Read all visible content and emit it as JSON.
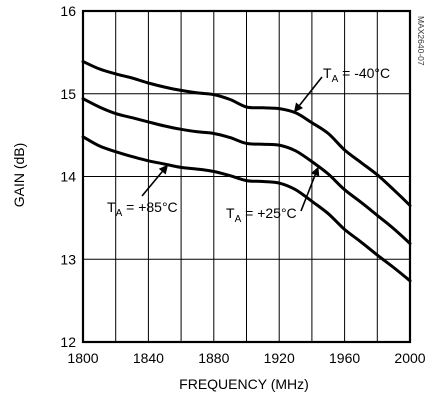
{
  "chart_data": {
    "type": "line",
    "title": "",
    "xlabel": "FREQUENCY (MHz)",
    "ylabel": "GAIN (dB)",
    "xlim": [
      1800,
      2000
    ],
    "ylim": [
      12,
      16
    ],
    "xticks": [
      1800,
      1840,
      1880,
      1920,
      1960,
      2000
    ],
    "yticks": [
      12,
      13,
      14,
      15,
      16
    ],
    "x_gridlines": [
      1800,
      1820,
      1840,
      1860,
      1880,
      1900,
      1920,
      1940,
      1960,
      1980,
      2000
    ],
    "y_gridlines": [
      12,
      13,
      14,
      15,
      16
    ],
    "grid": true,
    "watermark": "MAX2640-07",
    "series": [
      {
        "name": "TA = -40°C",
        "x": [
          1800,
          1810,
          1820,
          1830,
          1840,
          1850,
          1860,
          1870,
          1880,
          1890,
          1900,
          1910,
          1920,
          1930,
          1940,
          1950,
          1960,
          1970,
          1980,
          1990,
          2000
        ],
        "y": [
          15.39,
          15.3,
          15.24,
          15.19,
          15.13,
          15.08,
          15.04,
          15.01,
          14.99,
          14.93,
          14.84,
          14.83,
          14.82,
          14.77,
          14.65,
          14.52,
          14.32,
          14.17,
          14.02,
          13.84,
          13.65
        ]
      },
      {
        "name": "TA = +25°C",
        "x": [
          1800,
          1810,
          1820,
          1830,
          1840,
          1850,
          1860,
          1870,
          1880,
          1890,
          1900,
          1910,
          1920,
          1930,
          1940,
          1950,
          1960,
          1970,
          1980,
          1990,
          2000
        ],
        "y": [
          14.94,
          14.84,
          14.76,
          14.71,
          14.66,
          14.61,
          14.57,
          14.54,
          14.52,
          14.47,
          14.4,
          14.39,
          14.38,
          14.31,
          14.18,
          14.03,
          13.84,
          13.69,
          13.53,
          13.37,
          13.19
        ]
      },
      {
        "name": "TA = +85°C",
        "x": [
          1800,
          1810,
          1820,
          1830,
          1840,
          1850,
          1860,
          1870,
          1880,
          1890,
          1900,
          1910,
          1920,
          1930,
          1940,
          1950,
          1960,
          1970,
          1980,
          1990,
          2000
        ],
        "y": [
          14.48,
          14.37,
          14.3,
          14.24,
          14.19,
          14.15,
          14.11,
          14.09,
          14.06,
          14.01,
          13.95,
          13.94,
          13.92,
          13.84,
          13.7,
          13.55,
          13.36,
          13.21,
          13.05,
          12.9,
          12.74
        ]
      }
    ],
    "annotations": [
      {
        "prefix": "T",
        "sub": "A",
        "text": " = -40°C",
        "series": "TA = -40°C"
      },
      {
        "prefix": "T",
        "sub": "A",
        "text": " = +25°C",
        "series": "TA = +25°C"
      },
      {
        "prefix": "T",
        "sub": "A",
        "text": " = +85°C",
        "series": "TA = +85°C"
      }
    ]
  }
}
